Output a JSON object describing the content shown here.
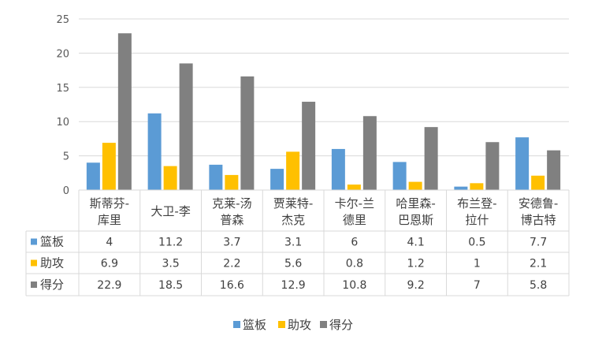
{
  "chart_data": {
    "type": "bar",
    "categories": [
      [
        "斯蒂芬-",
        "库里"
      ],
      [
        "大卫-李"
      ],
      [
        "克莱-汤",
        "普森"
      ],
      [
        "贾莱特-",
        "杰克"
      ],
      [
        "卡尔-兰",
        "德里"
      ],
      [
        "哈里森-",
        "巴恩斯"
      ],
      [
        "布兰登-",
        "拉什"
      ],
      [
        "安德鲁-",
        "博古特"
      ]
    ],
    "series": [
      {
        "name": "篮板",
        "color": "#5B9BD5",
        "values": [
          4,
          11.2,
          3.7,
          3.1,
          6,
          4.1,
          0.5,
          7.7
        ]
      },
      {
        "name": "助攻",
        "color": "#FFC000",
        "values": [
          6.9,
          3.5,
          2.2,
          5.6,
          0.8,
          1.2,
          1,
          2.1
        ]
      },
      {
        "name": "得分",
        "color": "#808080",
        "values": [
          22.9,
          18.5,
          16.6,
          12.9,
          10.8,
          9.2,
          7,
          5.8
        ]
      }
    ],
    "ylim": [
      0,
      25
    ],
    "yticks": [
      0,
      5,
      10,
      15,
      20,
      25
    ],
    "grid": true,
    "legend_position": "bottom",
    "table": true
  }
}
